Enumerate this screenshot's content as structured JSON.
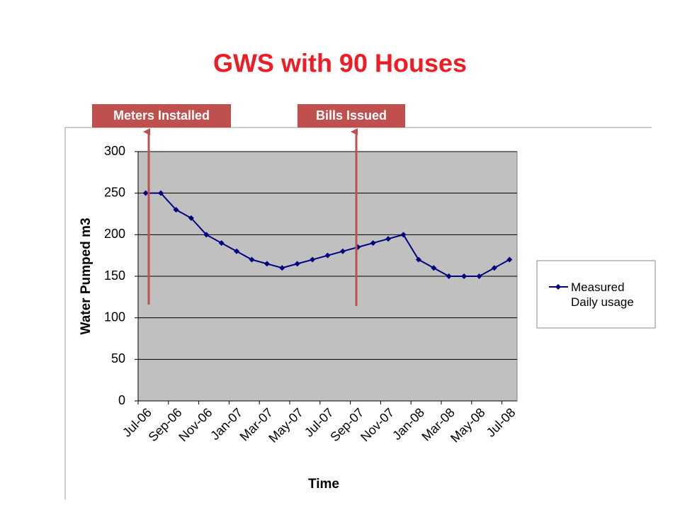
{
  "chart_data": {
    "type": "line",
    "title": "GWS with 90 Houses",
    "annotations": [
      "Meters Installed",
      "Bills Issued"
    ],
    "x_label": "Time",
    "y_label": "Water Pumped m3",
    "categories": [
      "Jul-06",
      null,
      "Sep-06",
      null,
      "Nov-06",
      null,
      "Jan-07",
      null,
      "Mar-07",
      null,
      "May-07",
      null,
      "Jul-07",
      null,
      "Sep-07",
      null,
      "Nov-07",
      null,
      "Jan-08",
      null,
      "Mar-08",
      null,
      "May-08",
      null,
      "Jul-08"
    ],
    "series": [
      {
        "name": "Measured Daily usage",
        "color": "#000080",
        "values": [
          250,
          250,
          230,
          220,
          200,
          190,
          180,
          170,
          165,
          160,
          165,
          170,
          175,
          180,
          185,
          190,
          195,
          200,
          170,
          160,
          150,
          150,
          150,
          160,
          170
        ]
      }
    ],
    "ylim": [
      0,
      300
    ],
    "yticks": [
      0,
      50,
      100,
      150,
      200,
      250,
      300
    ],
    "grid": true,
    "legend": "right",
    "plot_background": "#c0c0c0"
  }
}
